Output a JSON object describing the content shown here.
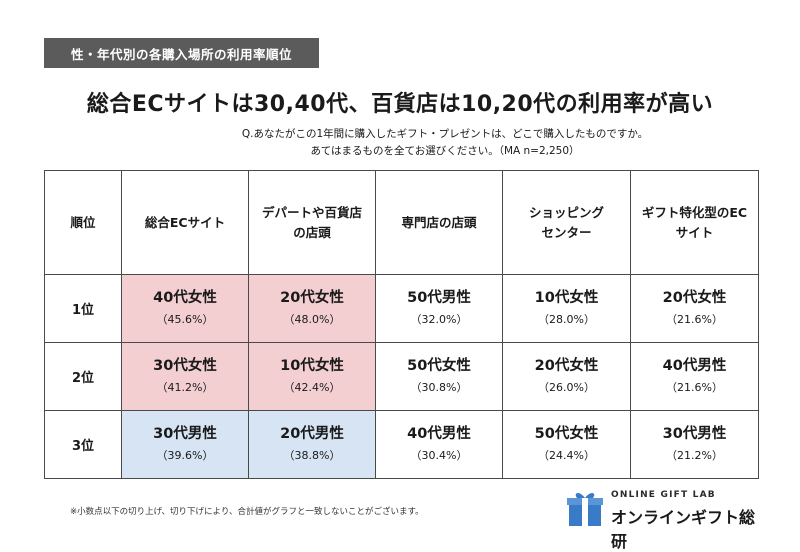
{
  "tag": "性・年代別の各購入場所の利用率順位",
  "headline": "総合ECサイトは30,40代、百貨店は10,20代の利用率が高い",
  "question": {
    "line1": "Q.あなたがこの1年間に購入したギフト・プレゼントは、どこで購入したものですか。",
    "line2": "あてはまるものを全てお選びください。（MA n=2,250）"
  },
  "table": {
    "headers": {
      "rank": "順位",
      "ec": "総合ECサイト",
      "dept_l1": "デパートや百貨店",
      "dept_l2": "の店頭",
      "specialty": "専門店の店頭",
      "mall_l1": "ショッピング",
      "mall_l2": "センター",
      "gift_l1": "ギフト特化型のEC",
      "gift_l2": "サイト"
    },
    "rows": [
      {
        "rank": "1位",
        "cells": [
          {
            "who": "40代女性",
            "pct": "（45.6%）",
            "highlight": "pink"
          },
          {
            "who": "20代女性",
            "pct": "（48.0%）",
            "highlight": "pink"
          },
          {
            "who": "50代男性",
            "pct": "（32.0%）",
            "highlight": "none"
          },
          {
            "who": "10代女性",
            "pct": "（28.0%）",
            "highlight": "none"
          },
          {
            "who": "20代女性",
            "pct": "（21.6%）",
            "highlight": "none"
          }
        ]
      },
      {
        "rank": "2位",
        "cells": [
          {
            "who": "30代女性",
            "pct": "（41.2%）",
            "highlight": "pink"
          },
          {
            "who": "10代女性",
            "pct": "（42.4%）",
            "highlight": "pink"
          },
          {
            "who": "50代女性",
            "pct": "（30.8%）",
            "highlight": "none"
          },
          {
            "who": "20代女性",
            "pct": "（26.0%）",
            "highlight": "none"
          },
          {
            "who": "40代男性",
            "pct": "（21.6%）",
            "highlight": "none"
          }
        ]
      },
      {
        "rank": "3位",
        "cells": [
          {
            "who": "30代男性",
            "pct": "（39.6%）",
            "highlight": "blue"
          },
          {
            "who": "20代男性",
            "pct": "（38.8%）",
            "highlight": "blue"
          },
          {
            "who": "40代男性",
            "pct": "（30.4%）",
            "highlight": "none"
          },
          {
            "who": "50代女性",
            "pct": "（24.4%）",
            "highlight": "none"
          },
          {
            "who": "30代男性",
            "pct": "（21.2%）",
            "highlight": "none"
          }
        ]
      }
    ]
  },
  "footnote": "※小数点以下の切り上げ、切り下げにより、合計値がグラフと一致しないことがございます。",
  "logo": {
    "en": "ONLINE GIFT LAB",
    "jp": "オンラインギフト総研",
    "icon": "gift-box-icon"
  },
  "colors": {
    "tag_bg": "#5b5b5b",
    "highlight_pink": "#f3cfd2",
    "highlight_blue": "#d6e4f3",
    "logo_blue": "#3a7bc8"
  }
}
